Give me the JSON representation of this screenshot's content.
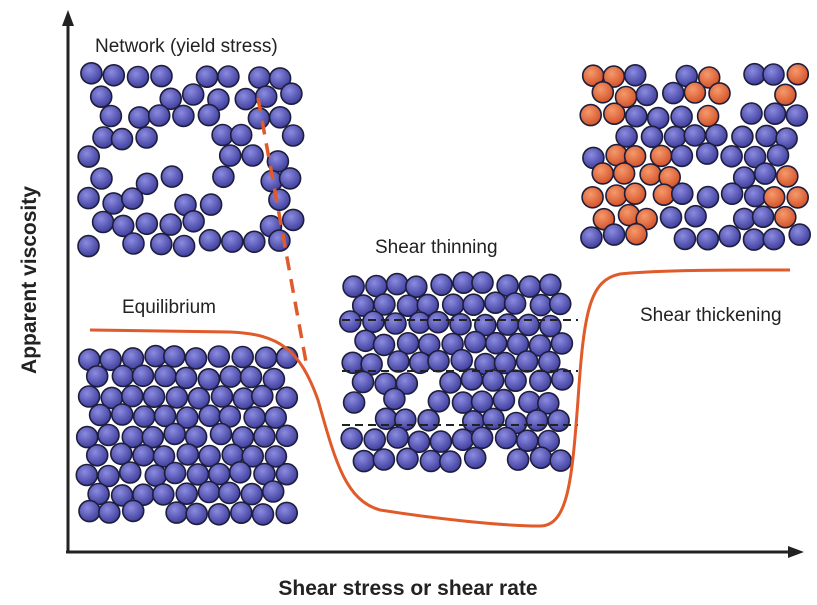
{
  "axes": {
    "y_label": "Apparent viscosity",
    "x_label": "Shear stress or shear rate"
  },
  "regions": [
    {
      "label": "Network (yield stress)"
    },
    {
      "label": "Equilibrium"
    },
    {
      "label": "Shear thinning"
    },
    {
      "label": "Shear thickening"
    }
  ]
}
